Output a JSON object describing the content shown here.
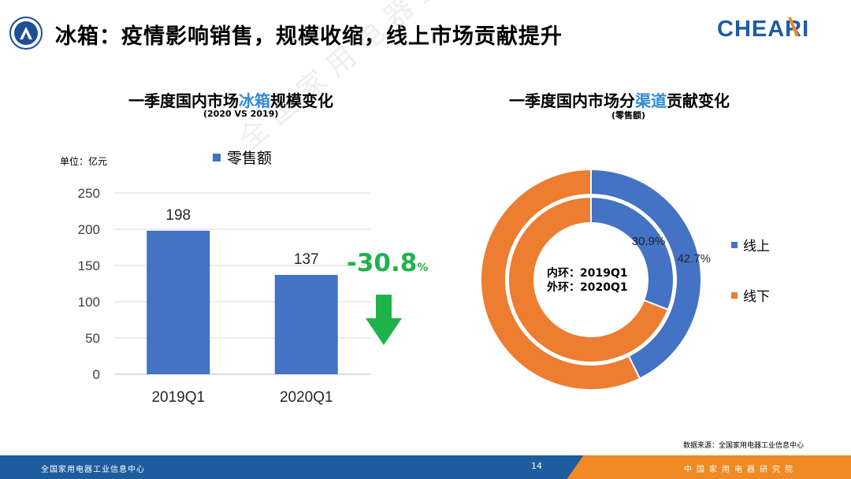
{
  "header": {
    "title": "冰箱：疫情影响销售，规模收缩，线上市场贡献提升",
    "brand": "CHEARI"
  },
  "left_chart": {
    "title_before": "一季度国内市场",
    "title_highlight": "冰箱",
    "title_after": "规模变化",
    "subtitle": "(2020 VS 2019)",
    "unit": "单位：亿元",
    "legend": "零售额",
    "change_value": "-30.8",
    "change_unit": "%"
  },
  "right_chart": {
    "title_before": "一季度国内市场分",
    "title_highlight": "渠道",
    "title_after": "贡献变化",
    "subtitle": "(零售额)",
    "center_line1": "内环：2019Q1",
    "center_line2": "外环：2020Q1",
    "legend_online": "线上",
    "legend_offline": "线下"
  },
  "chart_data": [
    {
      "type": "bar",
      "categories": [
        "2019Q1",
        "2020Q1"
      ],
      "series": [
        {
          "name": "零售额",
          "values": [
            198,
            137
          ]
        }
      ],
      "ylim": [
        0,
        250
      ],
      "yticks": [
        0,
        50,
        100,
        150,
        200,
        250
      ],
      "data_labels": [
        "198",
        "137"
      ],
      "grid": true,
      "legend_position": "top",
      "colors": {
        "bar": "#4472c4"
      }
    },
    {
      "type": "pie",
      "variant": "donut",
      "rings": [
        {
          "name": "2019Q1",
          "position": "inner",
          "slices": [
            {
              "label": "线上",
              "value": 30.9
            },
            {
              "label": "线下",
              "value": 69.1
            }
          ],
          "data_label": "30.9%"
        },
        {
          "name": "2020Q1",
          "position": "outer",
          "slices": [
            {
              "label": "线上",
              "value": 42.7
            },
            {
              "label": "线下",
              "value": 57.3
            }
          ],
          "data_label": "42.7%"
        }
      ],
      "legend_position": "right",
      "colors": {
        "线上": "#4472c4",
        "线下": "#ed7d31"
      }
    }
  ],
  "footer": {
    "left_text": "全国家用电器工业信息中心",
    "page_number": "14",
    "right_text": "中国家用电器研究院"
  },
  "source": "数据来源：全国家用电器工业信息中心",
  "watermark": "全国家用电器工业信息中心"
}
